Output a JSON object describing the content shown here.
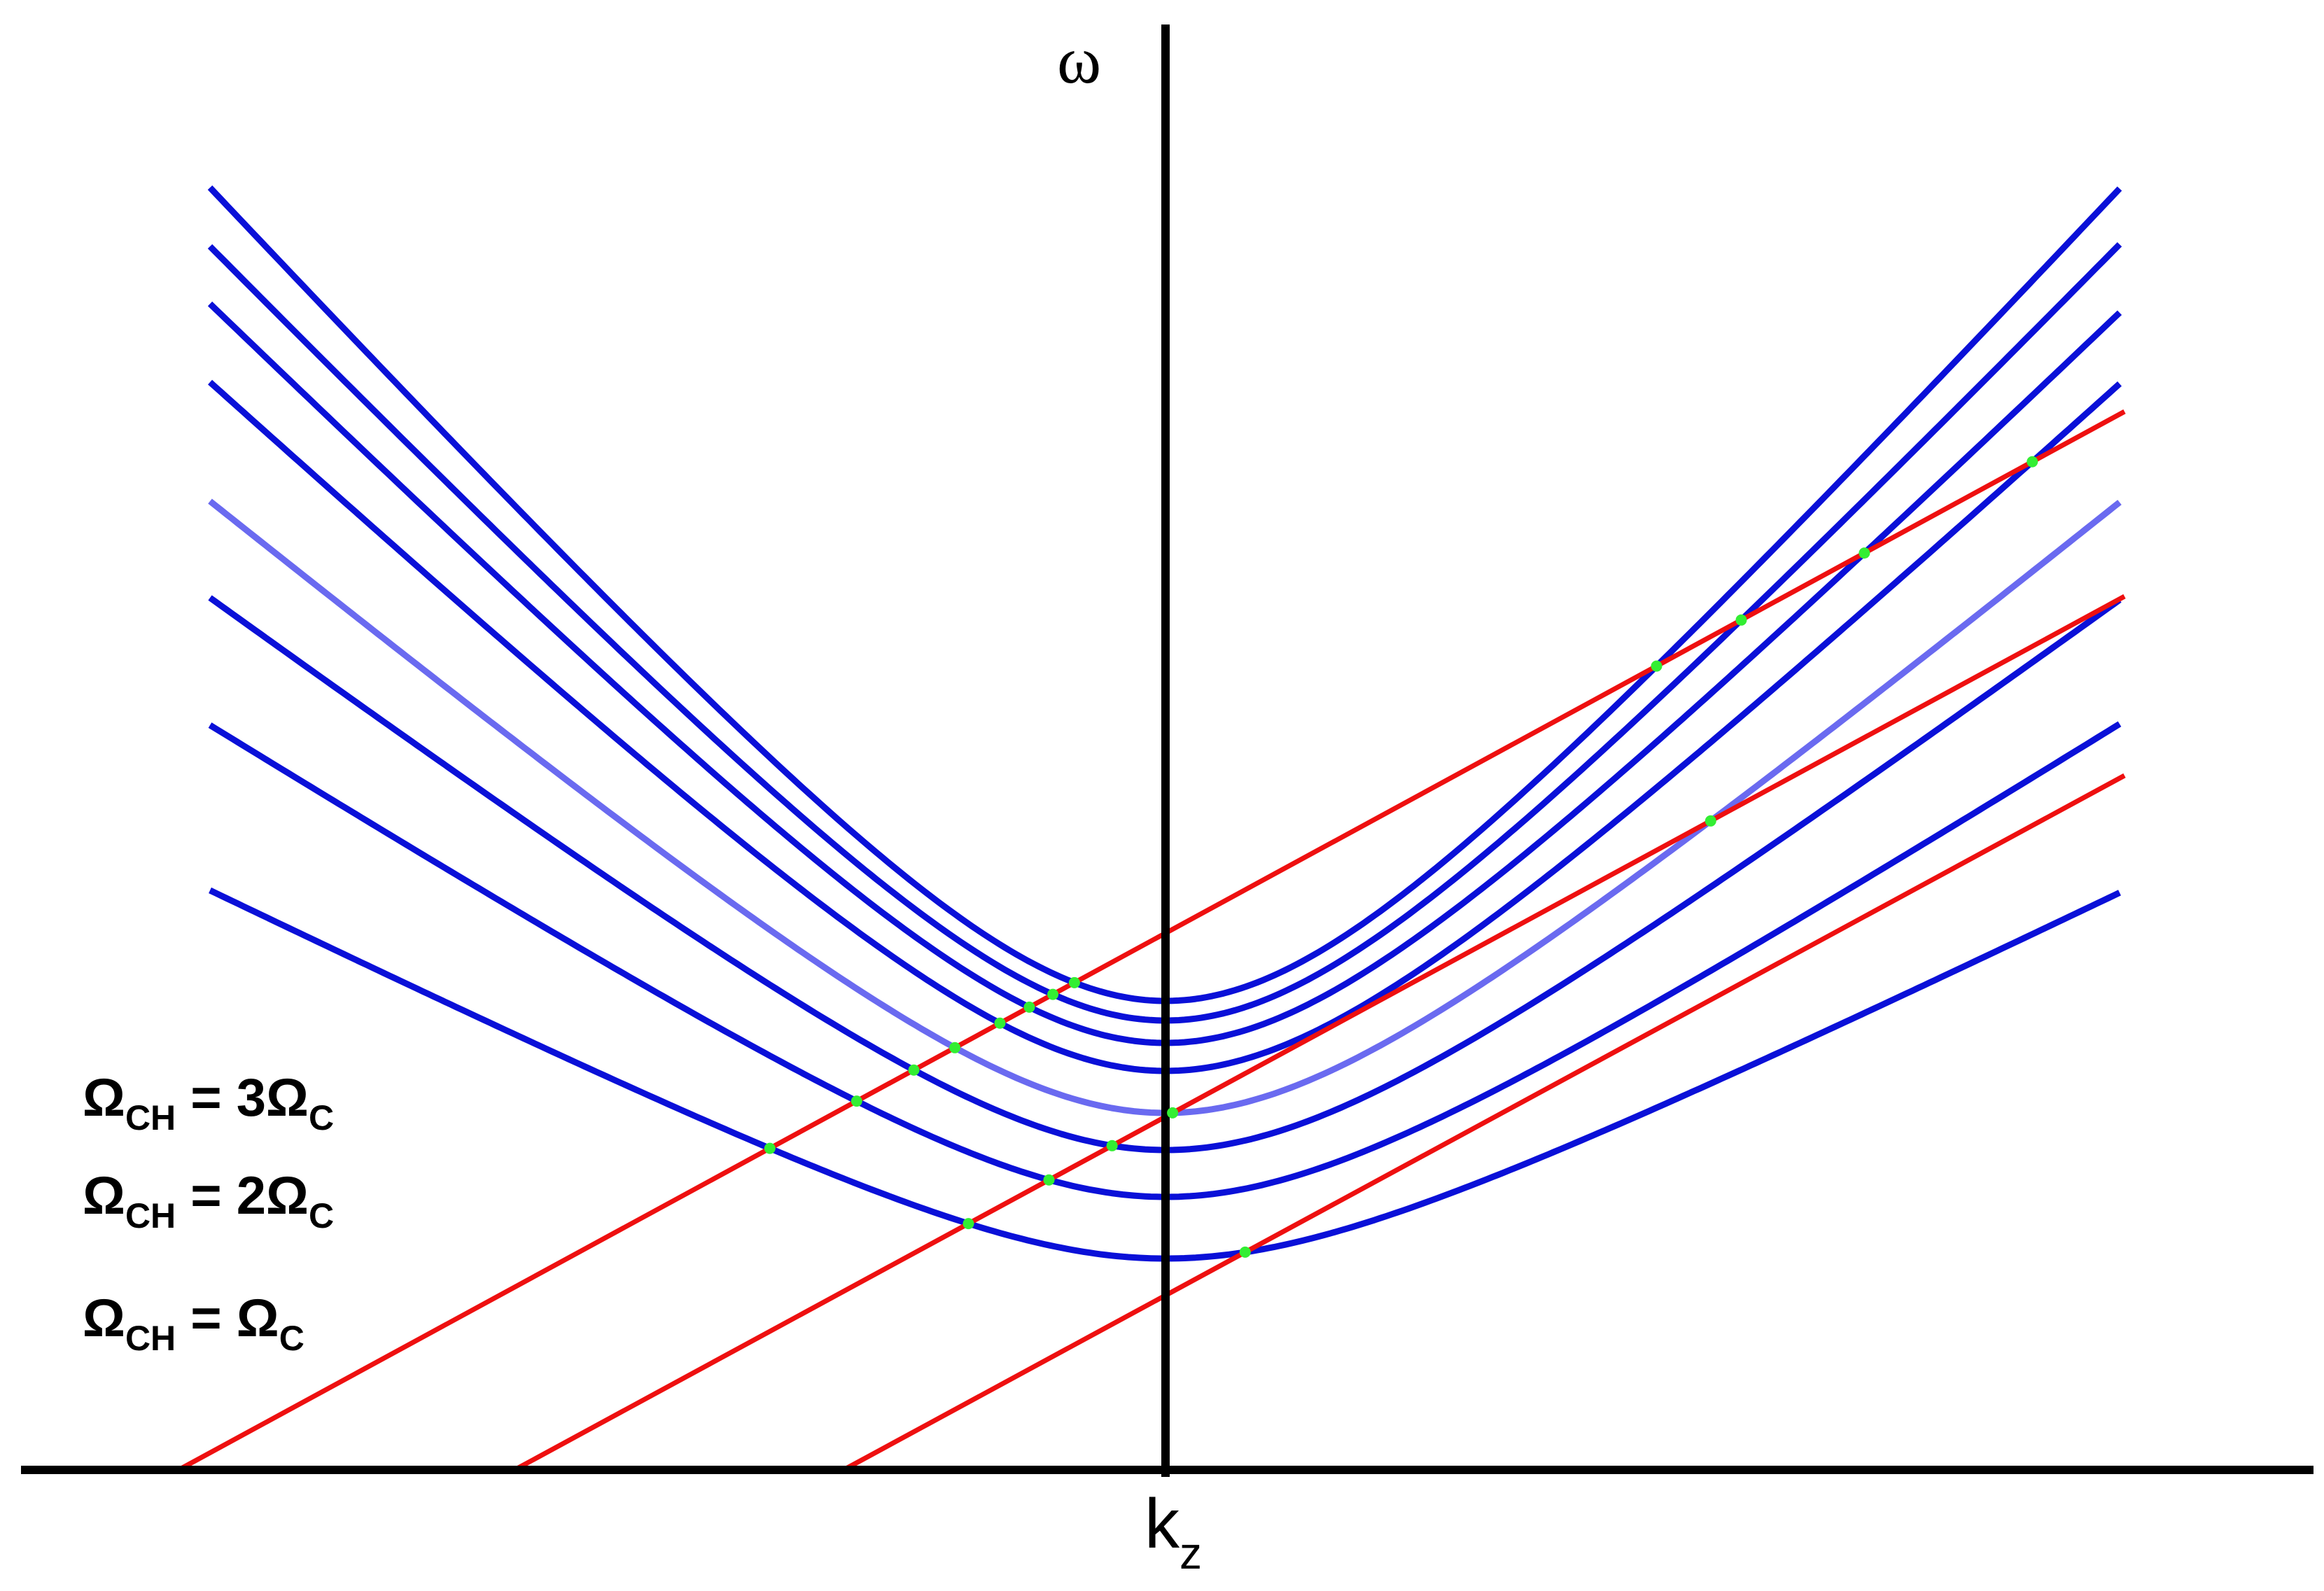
{
  "labels": {
    "y_axis": "ω",
    "x_axis_main": "k",
    "x_axis_sub": "z"
  },
  "conditions": [
    {
      "lhs": "Ω",
      "lhs_sub": "CH",
      "eq": " = 3Ω",
      "rhs_sub": "C"
    },
    {
      "lhs": "Ω",
      "lhs_sub": "CH",
      "eq": " = 2Ω",
      "rhs_sub": "C"
    },
    {
      "lhs": "Ω",
      "lhs_sub": "CH",
      "eq": " = Ω",
      "rhs_sub": "C"
    }
  ],
  "colors": {
    "axes": "#000000",
    "dispersion_branch": "#0a10d8",
    "highlighted_branch": "#6a6af0",
    "resonance_line": "#ee1010",
    "intersection_marker": "#33ee33"
  },
  "dispersion_branches": {
    "count": 8,
    "highlighted_index": 4
  },
  "resonance_lines": {
    "count": 3
  }
}
